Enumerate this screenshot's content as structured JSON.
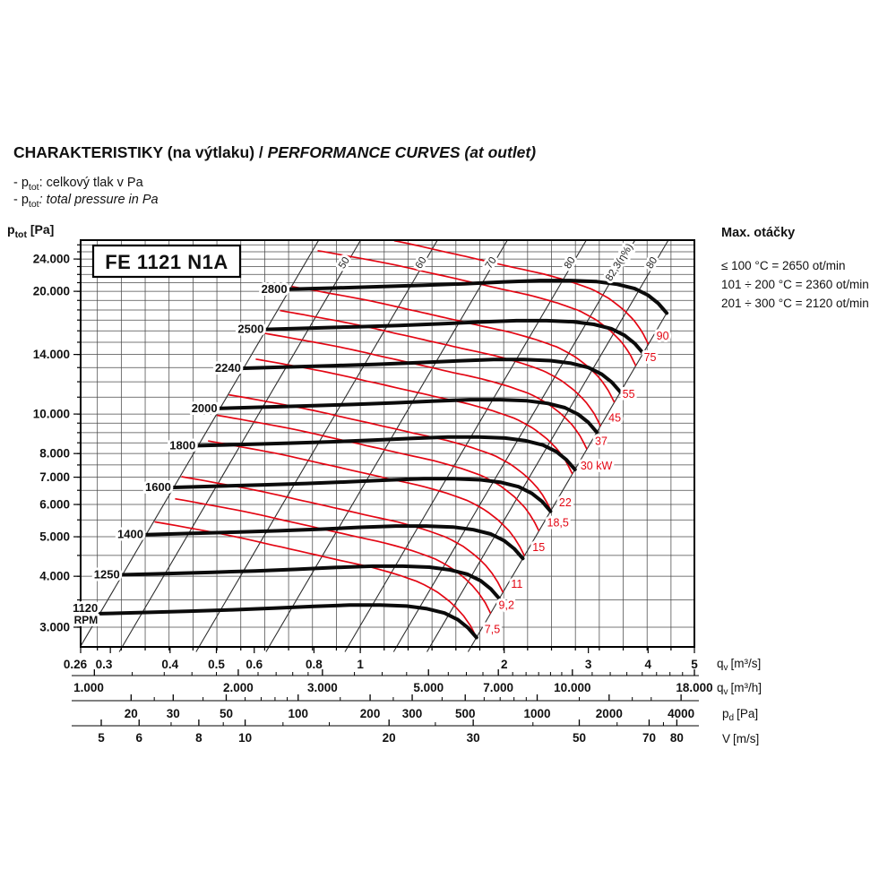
{
  "header": {
    "title_main": "CHARAKTERISTIKY (na výtlaku)",
    "title_divider": " / ",
    "title_italic": "PERFORMANCE CURVES (at outlet)",
    "bullet_prefix": "- p",
    "bullet_sub": "tot",
    "bullet1_rest": ": celkový tlak v Pa",
    "bullet2_rest": ": total pressure in Pa"
  },
  "max_speed_panel": {
    "title": "Max. otáčky",
    "lines": [
      "≤ 100 °C = 2650 ot/min",
      "101 ÷ 200 °C = 2360 ot/min",
      "201 ÷ 300 °C = 2120 ot/min"
    ]
  },
  "chart_data": {
    "type": "line",
    "model_badge": "FE 1121 N1A",
    "scales": "log-log",
    "y_axis": {
      "sym": "p",
      "sub": "tot",
      "unit": "[Pa]",
      "range_pa": [
        2610,
        26700
      ],
      "tick_values": [
        3000,
        4000,
        5000,
        6000,
        7000,
        8000,
        10000,
        14000,
        20000,
        24000
      ],
      "tick_labels": [
        "3.000",
        "4.000",
        "5.000",
        "6.000",
        "7.000",
        "8.000",
        "10.000",
        "14.000",
        "20.000",
        "24.000"
      ]
    },
    "x_axis_flow_m3s": {
      "sym": "q",
      "sub": "v",
      "unit": "[m³/s]",
      "range": [
        0.26,
        5
      ],
      "tick_values": [
        0.26,
        0.3,
        0.4,
        0.5,
        0.6,
        0.8,
        1,
        2,
        3,
        4,
        5
      ],
      "tick_labels": [
        "0.26",
        "0.3",
        "0.4",
        "0.5",
        "0.6",
        "0.8",
        "1",
        "2",
        "3",
        "4",
        "5"
      ]
    },
    "x_axis_flow_m3h": {
      "sym": "q",
      "sub": "v",
      "unit": "[m³/h]",
      "tick_values": [
        1000,
        2000,
        3000,
        5000,
        7000,
        10000,
        18000
      ],
      "tick_labels": [
        "1.000",
        "2.000",
        "3.000",
        "5.000",
        "7.000",
        "10.000",
        "18.000"
      ],
      "minor_ticks": [
        1200,
        1400,
        1600,
        1800,
        2200,
        2400,
        2600,
        2800,
        3500,
        4000,
        4500,
        5500,
        6000,
        6500,
        7500,
        8000,
        8500,
        9000,
        9500,
        11000,
        12000,
        13000,
        14000,
        15000,
        16000,
        17000
      ]
    },
    "x_axis_dyn_pressure": {
      "sym": "p",
      "sub": "d",
      "unit": "[Pa]",
      "tick_values": [
        20,
        30,
        50,
        100,
        200,
        300,
        500,
        1000,
        2000,
        4000
      ],
      "tick_labels": [
        "20",
        "30",
        "50",
        "100",
        "200",
        "300",
        "500",
        "1000",
        "2000",
        "4000"
      ],
      "minor_ticks": [
        25,
        40,
        60,
        70,
        80,
        90,
        150,
        250,
        400,
        600,
        700,
        800,
        900,
        1500,
        2500,
        3000
      ]
    },
    "x_axis_velocity": {
      "sym": "V",
      "sub": "",
      "unit": "[m/s]",
      "tick_values": [
        5,
        6,
        8,
        10,
        20,
        30,
        50,
        70,
        80
      ],
      "tick_labels": [
        "5",
        "6",
        "8",
        "10",
        "20",
        "30",
        "50",
        "70",
        "80"
      ],
      "minor_ticks": [
        7,
        9,
        12,
        15,
        25,
        40,
        60,
        75
      ]
    },
    "rpm_curves": {
      "unit_label": "RPM",
      "rpms": [
        1120,
        1250,
        1400,
        1600,
        1800,
        2000,
        2240,
        2500,
        2800
      ],
      "base_rpm": 1120,
      "base_curve": {
        "q_m3s": [
          0.285,
          0.35,
          0.44,
          0.54,
          0.66,
          0.8,
          0.95,
          1.1,
          1.25,
          1.38,
          1.5,
          1.6,
          1.68,
          1.75
        ],
        "p_pa": [
          3238,
          3260,
          3285,
          3310,
          3340,
          3375,
          3400,
          3400,
          3380,
          3330,
          3250,
          3130,
          2990,
          2830
        ],
        "power_kw": [
          3.44,
          3.68,
          3.98,
          4.32,
          4.69,
          5.09,
          5.45,
          5.8,
          6.15,
          6.5,
          6.85,
          7.1,
          7.3,
          7.5
        ]
      }
    },
    "power_curves": {
      "unit": "kW",
      "values_kw": [
        7.5,
        9.2,
        11,
        15,
        18.5,
        22,
        30,
        37,
        45,
        55,
        75,
        90
      ],
      "labels": [
        "7,5",
        "9,2",
        "11",
        "15",
        "18,5",
        "22",
        "30 kW",
        "37",
        "45",
        "55",
        "75",
        "90"
      ]
    },
    "efficiency_lines": {
      "labels": [
        "50",
        "60",
        "70",
        "80",
        "82,3(η%)",
        "80"
      ],
      "q_base": [
        0.35,
        0.51,
        0.72,
        1.06,
        1.33,
        1.53
      ],
      "label_anchor_pa": [
        22300,
        22300,
        22300,
        22300,
        20800,
        22300
      ],
      "left_boundary_q": 0.285,
      "right_boundary_q": 1.75
    },
    "colors": {
      "rpm_curve": "#0b0b0b",
      "power_curve": "#e30613",
      "efficiency_line": "#2e2e2e",
      "grid": "#4a4a4a",
      "frame": "#000000",
      "text": "#111111"
    }
  }
}
